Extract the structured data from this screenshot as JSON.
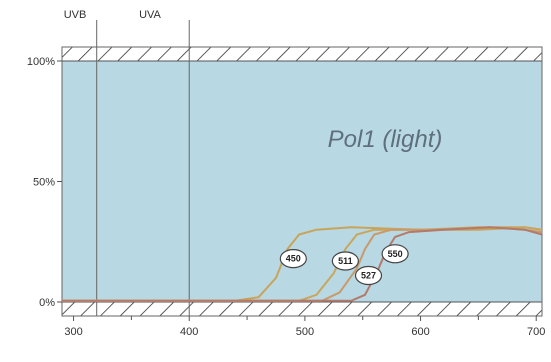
{
  "chart_data": {
    "type": "line",
    "title": "Pol1 (light)",
    "xlabel": "",
    "ylabel": "",
    "xlim": [
      290,
      705
    ],
    "ylim": [
      0,
      100
    ],
    "x_ticks": [
      300,
      400,
      500,
      600,
      700
    ],
    "y_ticks": [
      {
        "value": 0,
        "label": "0%"
      },
      {
        "value": 50,
        "label": "50%"
      },
      {
        "value": 100,
        "label": "100%"
      }
    ],
    "bands": [
      {
        "label": "UVB",
        "boundary": 320
      },
      {
        "label": "UVA",
        "boundary": 400
      }
    ],
    "series": [
      {
        "name": "450",
        "color": "#c8a45a",
        "label_at": [
          490,
          18
        ],
        "points": [
          [
            290,
            0.5
          ],
          [
            440,
            0.5
          ],
          [
            460,
            2
          ],
          [
            475,
            10
          ],
          [
            485,
            22
          ],
          [
            495,
            28
          ],
          [
            510,
            30
          ],
          [
            540,
            31
          ],
          [
            600,
            30
          ],
          [
            650,
            30
          ],
          [
            690,
            31
          ],
          [
            705,
            30
          ]
        ]
      },
      {
        "name": "511",
        "color": "#c9a65e",
        "label_at": [
          535,
          17
        ],
        "points": [
          [
            290,
            0.5
          ],
          [
            495,
            0.5
          ],
          [
            510,
            3
          ],
          [
            525,
            12
          ],
          [
            535,
            22
          ],
          [
            545,
            28
          ],
          [
            560,
            30
          ],
          [
            600,
            30
          ],
          [
            650,
            31
          ],
          [
            690,
            31
          ],
          [
            705,
            30
          ]
        ]
      },
      {
        "name": "527",
        "color": "#c89a6a",
        "label_at": [
          555,
          11
        ],
        "points": [
          [
            290,
            0.5
          ],
          [
            515,
            0.5
          ],
          [
            530,
            4
          ],
          [
            545,
            14
          ],
          [
            552,
            22
          ],
          [
            560,
            28
          ],
          [
            575,
            30
          ],
          [
            610,
            30
          ],
          [
            660,
            31
          ],
          [
            690,
            30
          ],
          [
            705,
            29
          ]
        ]
      },
      {
        "name": "550",
        "color": "#b37a6c",
        "label_at": [
          578,
          20
        ],
        "points": [
          [
            290,
            0.5
          ],
          [
            540,
            0.5
          ],
          [
            552,
            3
          ],
          [
            562,
            12
          ],
          [
            570,
            21
          ],
          [
            578,
            27
          ],
          [
            590,
            29
          ],
          [
            620,
            30
          ],
          [
            660,
            31
          ],
          [
            690,
            30
          ],
          [
            705,
            28
          ]
        ]
      }
    ],
    "colors": {
      "plot_background": "#b8d8e3",
      "hatch": "#333333",
      "axis": "#555555"
    }
  }
}
